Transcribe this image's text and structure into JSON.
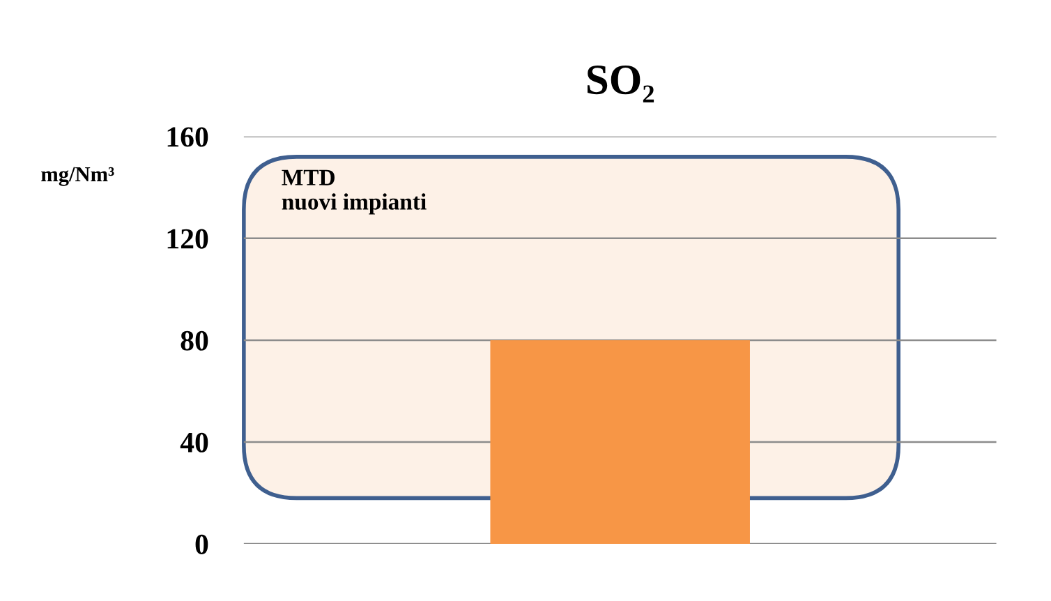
{
  "chart_data": {
    "type": "bar",
    "title": "SO₂",
    "ylabel": "mg/Nm³",
    "categories": [
      null
    ],
    "series": [
      {
        "color": "#f79646",
        "values": [
          80
        ]
      }
    ],
    "ylim": [
      0,
      160
    ],
    "yticks": [
      0,
      40,
      80,
      120,
      160
    ],
    "grid": "y",
    "bands": [
      {
        "axis": "y",
        "from": 18,
        "to": 152,
        "label": "MTD\nnuovi impianti",
        "color": "#fdf1e7"
      }
    ]
  }
}
